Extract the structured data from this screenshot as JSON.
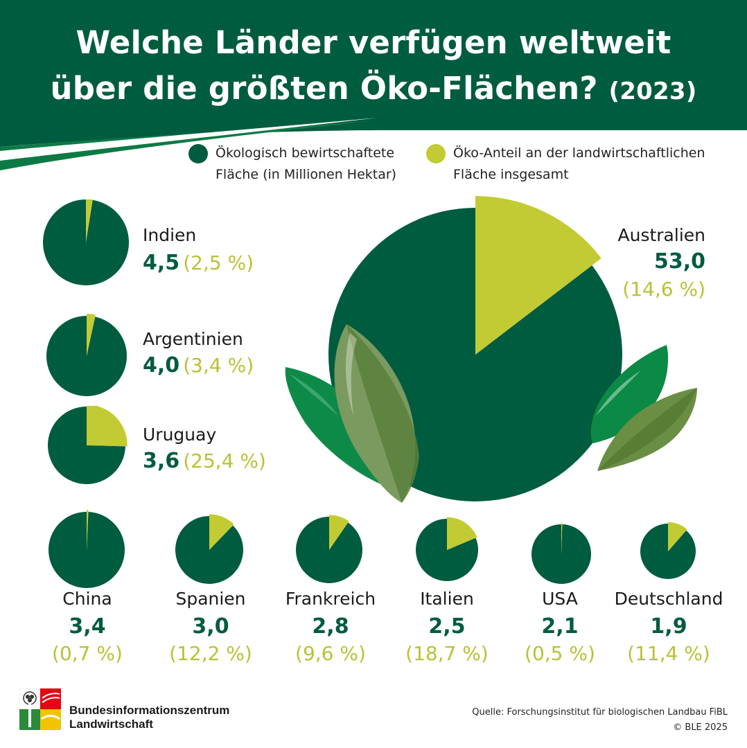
{
  "header": {
    "title_line1": "Welche Länder verfügen weltweit",
    "title_line2": "über die größten Öko-Flächen?",
    "title_year": "(2023)"
  },
  "legend": {
    "area_line1": "Ökologisch bewirtschaftete",
    "area_line2": "Fläche (in Millionen Hektar)",
    "share_line1": "Öko-Anteil an der landwirtschaftlichen",
    "share_line2": "Fläche insgesamt"
  },
  "colors": {
    "header": "#005c3f",
    "area": "#005c3f",
    "share": "#c2cb33",
    "leaf_green": "#0e8a48",
    "leaf_olive": "#7a9a4e"
  },
  "chart_data": {
    "type": "pie",
    "encoding": "circle area ~ organic area (million ha); slice angle = organic share of total agricultural area",
    "countries": [
      {
        "name": "Australien",
        "area": "53,0",
        "share": "(14,6 %)",
        "area_value": 53.0,
        "share_pct": 14.6
      },
      {
        "name": "Indien",
        "area": "4,5",
        "share": "(2,5 %)",
        "area_value": 4.5,
        "share_pct": 2.5
      },
      {
        "name": "Argentinien",
        "area": "4,0",
        "share": "(3,4 %)",
        "area_value": 4.0,
        "share_pct": 3.4
      },
      {
        "name": "Uruguay",
        "area": "3,6",
        "share": "(25,4 %)",
        "area_value": 3.6,
        "share_pct": 25.4
      },
      {
        "name": "China",
        "area": "3,4",
        "share": "(0,7 %)",
        "area_value": 3.4,
        "share_pct": 0.7
      },
      {
        "name": "Spanien",
        "area": "3,0",
        "share": "(12,2 %)",
        "area_value": 3.0,
        "share_pct": 12.2
      },
      {
        "name": "Frankreich",
        "area": "2,8",
        "share": "(9,6 %)",
        "area_value": 2.8,
        "share_pct": 9.6
      },
      {
        "name": "Italien",
        "area": "2,5",
        "share": "(18,7 %)",
        "area_value": 2.5,
        "share_pct": 18.7
      },
      {
        "name": "USA",
        "area": "2,1",
        "share": "(0,5 %)",
        "area_value": 2.1,
        "share_pct": 0.5
      },
      {
        "name": "Deutschland",
        "area": "1,9",
        "share": "(11,4 %)",
        "area_value": 1.9,
        "share_pct": 11.4
      }
    ]
  },
  "footer": {
    "logo_line1": "Bundesinformationszentrum",
    "logo_line2": "Landwirtschaft",
    "source": "Quelle: Forschungsinstitut für biologischen Landbau FiBL",
    "copyright": "© BLE 2025"
  }
}
